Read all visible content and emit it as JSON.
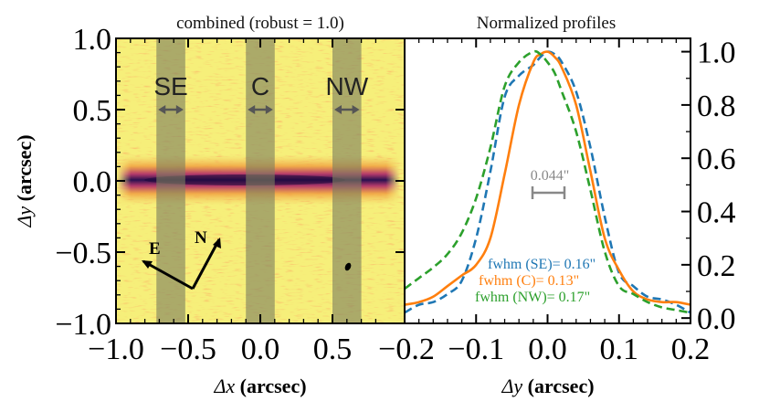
{
  "figure": {
    "left_panel": {
      "title": "combined (robust = 1.0)",
      "xlabel_symbol": "Δx",
      "xlabel_unit": "(arcsec)",
      "ylabel_symbol": "Δy",
      "ylabel_unit": "(arcsec)",
      "x_ticks": [
        "−1.0",
        "−0.5",
        "0.0",
        "0.5"
      ],
      "y_ticks": [
        "1.0",
        "0.5",
        "0.0",
        "−0.5",
        "−1.0"
      ],
      "bands": [
        {
          "label": "SE",
          "center": -0.62
        },
        {
          "label": "C",
          "center": 0.0
        },
        {
          "label": "NW",
          "center": 0.6
        }
      ],
      "compass": {
        "east": "E",
        "north": "N"
      },
      "colors": {
        "background": "#f6ef7a",
        "disk_core": "#3a1a6a",
        "disk_edge": "#f09a3a",
        "band": "#7d8060"
      }
    },
    "right_panel": {
      "title": "Normalized profiles",
      "xlabel_symbol": "Δy",
      "xlabel_unit": "(arcsec)",
      "x_ticks": [
        "−0.2",
        "−0.1",
        "0.0",
        "0.1",
        "0.2"
      ],
      "y_ticks": [
        "1.0",
        "0.8",
        "0.6",
        "0.4",
        "0.2",
        "0.0"
      ],
      "scale_bar_label": "0.044\"",
      "fwhm_labels": [
        {
          "text": "fwhm (SE)= 0.16\"",
          "color": "#1f77b4"
        },
        {
          "text": "fwhm (C)= 0.13\"",
          "color": "#ff7f0e"
        },
        {
          "text": "fwhm (NW)= 0.17\"",
          "color": "#2ca02c"
        }
      ]
    }
  },
  "chart_data": {
    "type": "line",
    "title": "Normalized profiles",
    "xlabel": "Δy (arcsec)",
    "ylabel": "",
    "xlim": [
      -0.2,
      0.2
    ],
    "ylim": [
      -0.02,
      1.05
    ],
    "series": [
      {
        "name": "fwhm (SE)= 0.16\"",
        "color": "#1f77b4",
        "dash": true,
        "x": [
          -0.2,
          -0.18,
          -0.16,
          -0.14,
          -0.12,
          -0.1,
          -0.08,
          -0.06,
          -0.04,
          -0.02,
          -0.01,
          0.0,
          0.01,
          0.02,
          0.04,
          0.06,
          0.08,
          0.1,
          0.12,
          0.14,
          0.16,
          0.18,
          0.2
        ],
        "values": [
          0.02,
          0.05,
          0.06,
          0.09,
          0.14,
          0.3,
          0.55,
          0.83,
          0.91,
          0.95,
          0.98,
          1.0,
          0.99,
          0.96,
          0.85,
          0.64,
          0.38,
          0.17,
          0.12,
          0.08,
          0.07,
          0.05,
          0.02
        ]
      },
      {
        "name": "fwhm (C)= 0.13\"",
        "color": "#ff7f0e",
        "dash": false,
        "x": [
          -0.2,
          -0.18,
          -0.16,
          -0.14,
          -0.12,
          -0.1,
          -0.08,
          -0.06,
          -0.04,
          -0.02,
          -0.01,
          0.0,
          0.01,
          0.02,
          0.04,
          0.06,
          0.08,
          0.1,
          0.12,
          0.14,
          0.16,
          0.18,
          0.2
        ],
        "values": [
          0.05,
          0.06,
          0.08,
          0.12,
          0.16,
          0.2,
          0.3,
          0.54,
          0.8,
          0.96,
          0.99,
          1.0,
          0.98,
          0.94,
          0.8,
          0.55,
          0.3,
          0.18,
          0.1,
          0.07,
          0.06,
          0.06,
          0.05
        ]
      },
      {
        "name": "fwhm (NW)= 0.17\"",
        "color": "#2ca02c",
        "dash": true,
        "x": [
          -0.2,
          -0.18,
          -0.16,
          -0.14,
          -0.12,
          -0.1,
          -0.08,
          -0.06,
          -0.04,
          -0.02,
          -0.01,
          0.0,
          0.01,
          0.02,
          0.04,
          0.06,
          0.08,
          0.1,
          0.12,
          0.14,
          0.16,
          0.18,
          0.2
        ],
        "values": [
          0.11,
          0.15,
          0.19,
          0.24,
          0.32,
          0.45,
          0.64,
          0.87,
          0.96,
          1.0,
          0.99,
          0.96,
          0.92,
          0.85,
          0.7,
          0.48,
          0.25,
          0.12,
          0.09,
          0.06,
          0.04,
          0.03,
          0.02
        ]
      }
    ],
    "annotations": [
      "0.044\""
    ]
  }
}
